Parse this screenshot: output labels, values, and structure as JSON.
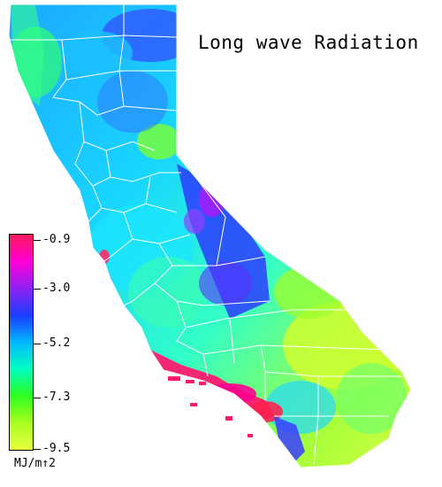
{
  "title": "Long wave Radiation",
  "legend": {
    "ticks": [
      "-0.9",
      "-3.0",
      "-5.2",
      "-7.3",
      "-9.5"
    ],
    "units": "MJ/m↑2",
    "colors_top_to_bottom": [
      "#ff1a5a",
      "#ff00d8",
      "#8f22f2",
      "#1b3cff",
      "#00b8ff",
      "#00ffc0",
      "#2fff20",
      "#a8ff20",
      "#e8ff40"
    ]
  },
  "map": {
    "region": "California",
    "counties_outlined": true
  }
}
